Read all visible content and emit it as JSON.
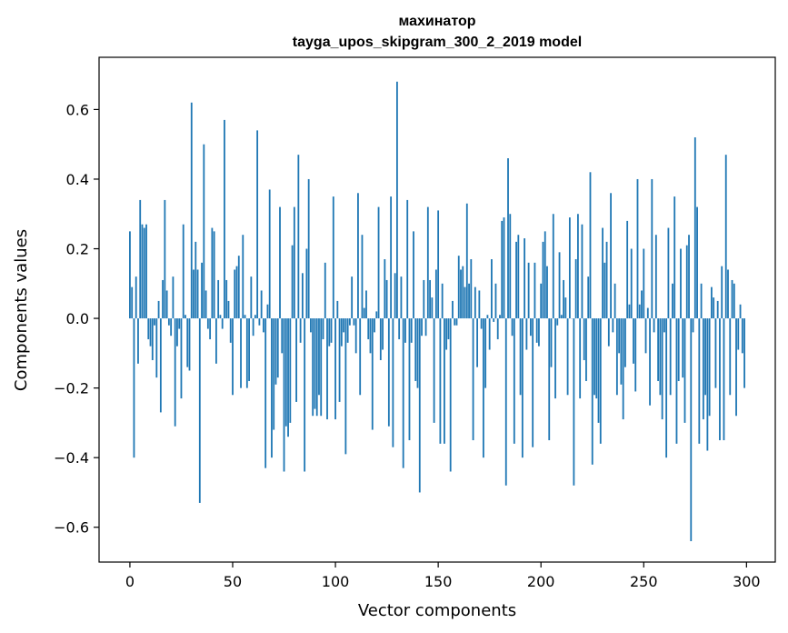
{
  "chart_data": {
    "type": "bar",
    "title": "махинатор",
    "subtitle": "tayga_upos_skipgram_300_2_2019 model",
    "xlabel": "Vector components",
    "ylabel": "Components values",
    "xlim": [
      -15,
      314
    ],
    "ylim": [
      -0.7,
      0.75
    ],
    "xticks": [
      0,
      50,
      100,
      150,
      200,
      250,
      300
    ],
    "yticks": [
      -0.6,
      -0.4,
      -0.2,
      0.0,
      0.2,
      0.4,
      0.6
    ],
    "ytick_labels": [
      "−0.6",
      "−0.4",
      "−0.2",
      "0.0",
      "0.2",
      "0.4",
      "0.6"
    ],
    "bar_color": "#1f77b4",
    "grid": false,
    "x": [
      0,
      1,
      2,
      3,
      4,
      5,
      6,
      7,
      8,
      9,
      10,
      11,
      12,
      13,
      14,
      15,
      16,
      17,
      18,
      19,
      20,
      21,
      22,
      23,
      24,
      25,
      26,
      27,
      28,
      29,
      30,
      31,
      32,
      33,
      34,
      35,
      36,
      37,
      38,
      39,
      40,
      41,
      42,
      43,
      44,
      45,
      46,
      47,
      48,
      49,
      50,
      51,
      52,
      53,
      54,
      55,
      56,
      57,
      58,
      59,
      60,
      61,
      62,
      63,
      64,
      65,
      66,
      67,
      68,
      69,
      70,
      71,
      72,
      73,
      74,
      75,
      76,
      77,
      78,
      79,
      80,
      81,
      82,
      83,
      84,
      85,
      86,
      87,
      88,
      89,
      90,
      91,
      92,
      93,
      94,
      95,
      96,
      97,
      98,
      99,
      100,
      101,
      102,
      103,
      104,
      105,
      106,
      107,
      108,
      109,
      110,
      111,
      112,
      113,
      114,
      115,
      116,
      117,
      118,
      119,
      120,
      121,
      122,
      123,
      124,
      125,
      126,
      127,
      128,
      129,
      130,
      131,
      132,
      133,
      134,
      135,
      136,
      137,
      138,
      139,
      140,
      141,
      142,
      143,
      144,
      145,
      146,
      147,
      148,
      149,
      150,
      151,
      152,
      153,
      154,
      155,
      156,
      157,
      158,
      159,
      160,
      161,
      162,
      163,
      164,
      165,
      166,
      167,
      168,
      169,
      170,
      171,
      172,
      173,
      174,
      175,
      176,
      177,
      178,
      179,
      180,
      181,
      182,
      183,
      184,
      185,
      186,
      187,
      188,
      189,
      190,
      191,
      192,
      193,
      194,
      195,
      196,
      197,
      198,
      199,
      200,
      201,
      202,
      203,
      204,
      205,
      206,
      207,
      208,
      209,
      210,
      211,
      212,
      213,
      214,
      215,
      216,
      217,
      218,
      219,
      220,
      221,
      222,
      223,
      224,
      225,
      226,
      227,
      228,
      229,
      230,
      231,
      232,
      233,
      234,
      235,
      236,
      237,
      238,
      239,
      240,
      241,
      242,
      243,
      244,
      245,
      246,
      247,
      248,
      249,
      250,
      251,
      252,
      253,
      254,
      255,
      256,
      257,
      258,
      259,
      260,
      261,
      262,
      263,
      264,
      265,
      266,
      267,
      268,
      269,
      270,
      271,
      272,
      273,
      274,
      275,
      276,
      277,
      278,
      279,
      280,
      281,
      282,
      283,
      284,
      285,
      286,
      287,
      288,
      289,
      290,
      291,
      292,
      293,
      294,
      295,
      296,
      297,
      298,
      299
    ],
    "values": [
      0.25,
      0.09,
      -0.4,
      0.12,
      -0.13,
      0.34,
      0.27,
      0.26,
      0.27,
      -0.06,
      -0.08,
      -0.12,
      -0.02,
      -0.17,
      0.05,
      -0.27,
      0.11,
      0.34,
      0.08,
      -0.02,
      -0.05,
      0.12,
      -0.31,
      -0.08,
      -0.03,
      -0.23,
      0.27,
      0.01,
      -0.14,
      -0.15,
      0.62,
      0.14,
      0.22,
      0.14,
      -0.53,
      0.16,
      0.5,
      0.08,
      -0.03,
      -0.06,
      0.26,
      0.25,
      -0.13,
      0.11,
      0.01,
      -0.03,
      0.57,
      0.11,
      0.05,
      -0.07,
      -0.22,
      0.14,
      0.15,
      0.18,
      -0.2,
      0.24,
      0.01,
      -0.2,
      -0.18,
      0.12,
      -0.05,
      0.01,
      0.54,
      -0.02,
      0.08,
      -0.04,
      -0.43,
      0.04,
      0.37,
      -0.4,
      -0.32,
      -0.19,
      -0.17,
      0.32,
      -0.1,
      -0.44,
      -0.31,
      -0.34,
      -0.3,
      0.21,
      0.32,
      -0.24,
      0.47,
      -0.07,
      0.13,
      -0.44,
      0.2,
      0.4,
      -0.04,
      -0.28,
      -0.26,
      -0.28,
      -0.22,
      -0.28,
      -0.06,
      0.16,
      -0.29,
      -0.08,
      -0.07,
      0.35,
      -0.29,
      0.05,
      -0.24,
      -0.08,
      -0.04,
      -0.39,
      -0.07,
      -0.02,
      0.12,
      -0.02,
      -0.1,
      0.36,
      -0.22,
      0.24,
      0.03,
      0.08,
      -0.06,
      -0.1,
      -0.32,
      -0.04,
      0.02,
      0.32,
      -0.12,
      -0.09,
      0.17,
      0.11,
      -0.31,
      0.35,
      -0.37,
      0.13,
      0.68,
      -0.06,
      0.12,
      -0.43,
      -0.07,
      0.34,
      -0.35,
      -0.07,
      0.25,
      -0.18,
      -0.2,
      -0.5,
      -0.05,
      0.11,
      -0.05,
      0.32,
      0.11,
      0.06,
      -0.3,
      0.14,
      0.31,
      -0.36,
      0.1,
      -0.36,
      -0.09,
      -0.06,
      -0.44,
      0.05,
      -0.02,
      -0.02,
      0.18,
      0.14,
      0.15,
      0.09,
      0.33,
      0.1,
      0.17,
      -0.35,
      0.09,
      -0.14,
      0.08,
      -0.03,
      -0.4,
      -0.2,
      0.01,
      -0.09,
      0.17,
      -0.01,
      0.1,
      -0.06,
      0.01,
      0.28,
      0.29,
      -0.48,
      0.46,
      0.3,
      -0.05,
      -0.36,
      0.22,
      0.24,
      -0.22,
      -0.4,
      0.23,
      -0.09,
      0.16,
      -0.05,
      -0.37,
      0.16,
      -0.07,
      -0.08,
      0.1,
      0.22,
      0.25,
      0.15,
      -0.35,
      -0.14,
      0.3,
      -0.23,
      -0.02,
      0.19,
      0.01,
      0.11,
      0.06,
      -0.22,
      0.29,
      0.0,
      -0.48,
      0.17,
      0.3,
      -0.23,
      0.27,
      -0.12,
      -0.18,
      0.12,
      0.42,
      -0.42,
      -0.22,
      -0.23,
      -0.3,
      -0.36,
      0.26,
      0.16,
      0.22,
      -0.08,
      0.36,
      -0.04,
      0.1,
      -0.22,
      -0.1,
      -0.19,
      -0.29,
      -0.14,
      0.28,
      0.04,
      0.2,
      -0.13,
      -0.21,
      0.4,
      0.04,
      0.08,
      0.2,
      -0.1,
      0.03,
      -0.25,
      0.4,
      -0.04,
      0.24,
      -0.18,
      -0.22,
      -0.29,
      -0.04,
      -0.4,
      0.26,
      -0.22,
      0.1,
      0.35,
      -0.36,
      -0.18,
      0.2,
      -0.17,
      -0.3,
      0.21,
      0.24,
      -0.64,
      -0.04,
      0.52,
      0.32,
      -0.36,
      0.1,
      -0.29,
      -0.22,
      -0.38,
      -0.28,
      0.09,
      0.06,
      -0.2,
      0.05,
      -0.35,
      0.15,
      -0.35,
      0.47,
      0.14,
      -0.22,
      0.11,
      0.1,
      -0.28,
      -0.09,
      0.04,
      -0.1,
      -0.2
    ]
  }
}
